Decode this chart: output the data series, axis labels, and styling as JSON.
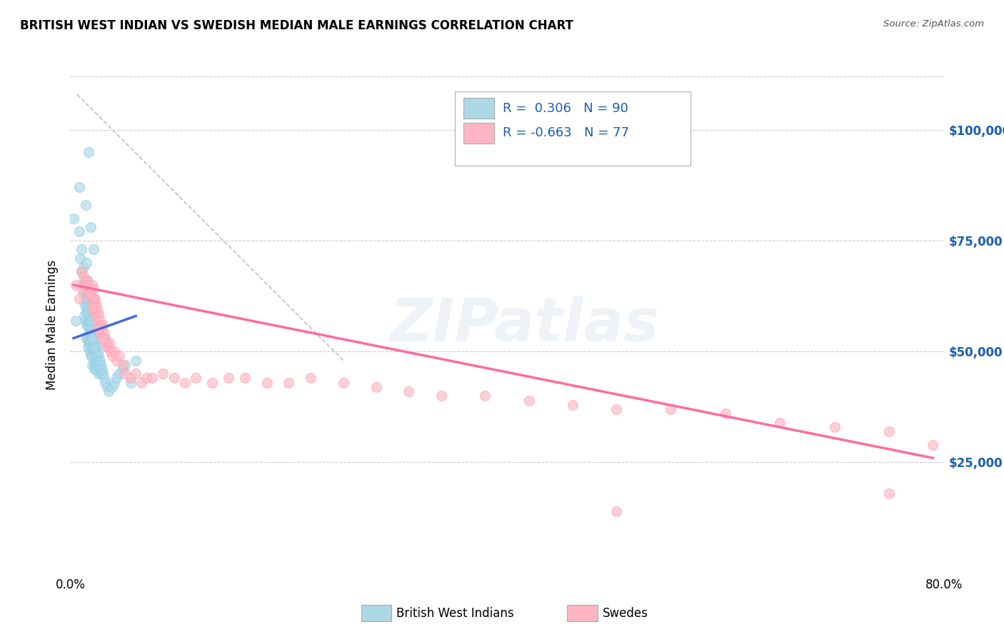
{
  "title": "BRITISH WEST INDIAN VS SWEDISH MEDIAN MALE EARNINGS CORRELATION CHART",
  "source": "Source: ZipAtlas.com",
  "ylabel": "Median Male Earnings",
  "y_ticks": [
    25000,
    50000,
    75000,
    100000
  ],
  "y_tick_labels": [
    "$25,000",
    "$50,000",
    "$75,000",
    "$100,000"
  ],
  "x_range": [
    0.0,
    0.8
  ],
  "y_range": [
    0,
    112000
  ],
  "legend1_R": "0.306",
  "legend1_N": "90",
  "legend2_R": "-0.663",
  "legend2_N": "77",
  "blue_color": "#ADD8E6",
  "blue_edge_color": "#87CEEB",
  "blue_line_color": "#4169E1",
  "pink_color": "#FFB6C1",
  "pink_edge_color": "#FF9EB5",
  "pink_line_color": "#FF6B9D",
  "diagonal_color": "#BBBBBB",
  "watermark": "ZIPatlas",
  "blue_scatter_x": [
    0.003,
    0.005,
    0.008,
    0.009,
    0.01,
    0.01,
    0.011,
    0.012,
    0.012,
    0.013,
    0.013,
    0.013,
    0.014,
    0.014,
    0.014,
    0.015,
    0.015,
    0.015,
    0.015,
    0.015,
    0.016,
    0.016,
    0.016,
    0.016,
    0.016,
    0.017,
    0.017,
    0.017,
    0.017,
    0.018,
    0.018,
    0.018,
    0.018,
    0.019,
    0.019,
    0.019,
    0.019,
    0.02,
    0.02,
    0.02,
    0.02,
    0.02,
    0.021,
    0.021,
    0.021,
    0.022,
    0.022,
    0.022,
    0.022,
    0.022,
    0.023,
    0.023,
    0.023,
    0.023,
    0.024,
    0.024,
    0.024,
    0.025,
    0.025,
    0.025,
    0.026,
    0.026,
    0.026,
    0.027,
    0.027,
    0.028,
    0.028,
    0.029,
    0.03,
    0.031,
    0.032,
    0.034,
    0.035,
    0.038,
    0.04,
    0.042,
    0.045,
    0.048,
    0.05,
    0.055,
    0.06,
    0.008,
    0.014,
    0.019,
    0.021,
    0.017,
    0.022,
    0.015,
    0.016,
    0.02
  ],
  "blue_scatter_y": [
    80000,
    57000,
    77000,
    71000,
    73000,
    68000,
    65000,
    69000,
    63000,
    66000,
    61000,
    58000,
    63000,
    60000,
    57000,
    65000,
    62000,
    59000,
    56000,
    53000,
    62000,
    59000,
    56000,
    53000,
    51000,
    60000,
    57000,
    54000,
    52000,
    58000,
    55000,
    52000,
    50000,
    57000,
    54000,
    51000,
    49000,
    55000,
    53000,
    51000,
    49000,
    47000,
    54000,
    52000,
    50000,
    53000,
    51000,
    49000,
    47000,
    46000,
    52000,
    50000,
    48000,
    46000,
    51000,
    49000,
    47000,
    50000,
    48000,
    46000,
    49000,
    47000,
    45000,
    48000,
    46000,
    47000,
    45000,
    46000,
    45000,
    44000,
    43000,
    42000,
    41000,
    42000,
    43000,
    44000,
    45000,
    46000,
    47000,
    43000,
    48000,
    87000,
    83000,
    78000,
    73000,
    95000,
    51000,
    70000,
    66000,
    53000
  ],
  "pink_scatter_x": [
    0.005,
    0.008,
    0.01,
    0.011,
    0.012,
    0.013,
    0.015,
    0.016,
    0.017,
    0.018,
    0.019,
    0.02,
    0.02,
    0.021,
    0.021,
    0.022,
    0.022,
    0.023,
    0.023,
    0.024,
    0.025,
    0.025,
    0.026,
    0.027,
    0.028,
    0.028,
    0.029,
    0.03,
    0.031,
    0.032,
    0.033,
    0.034,
    0.035,
    0.036,
    0.037,
    0.038,
    0.04,
    0.042,
    0.045,
    0.048,
    0.05,
    0.055,
    0.06,
    0.065,
    0.07,
    0.075,
    0.085,
    0.095,
    0.105,
    0.115,
    0.13,
    0.145,
    0.16,
    0.18,
    0.2,
    0.22,
    0.25,
    0.28,
    0.31,
    0.34,
    0.38,
    0.42,
    0.46,
    0.5,
    0.55,
    0.6,
    0.65,
    0.7,
    0.75,
    0.79,
    0.02,
    0.025,
    0.03,
    0.022,
    0.018,
    0.5,
    0.75
  ],
  "pink_scatter_y": [
    65000,
    62000,
    68000,
    64000,
    67000,
    65000,
    66000,
    64000,
    65000,
    63000,
    63000,
    65000,
    62000,
    64000,
    61000,
    62000,
    59000,
    61000,
    58000,
    60000,
    59000,
    56000,
    58000,
    57000,
    56000,
    54000,
    55000,
    56000,
    54000,
    53000,
    52000,
    51000,
    51000,
    52000,
    50000,
    49000,
    50000,
    48000,
    49000,
    47000,
    45000,
    44000,
    45000,
    43000,
    44000,
    44000,
    45000,
    44000,
    43000,
    44000,
    43000,
    44000,
    44000,
    43000,
    43000,
    44000,
    43000,
    42000,
    41000,
    40000,
    40000,
    39000,
    38000,
    37000,
    37000,
    36000,
    34000,
    33000,
    32000,
    29000,
    60000,
    55000,
    53000,
    62000,
    63000,
    14000,
    18000
  ],
  "blue_line_x0": 0.003,
  "blue_line_x1": 0.06,
  "blue_line_y0": 53000,
  "blue_line_y1": 58000,
  "pink_line_x0": 0.003,
  "pink_line_x1": 0.79,
  "pink_line_y0": 65000,
  "pink_line_y1": 26000,
  "diag_line_x0": 0.006,
  "diag_line_x1": 0.25,
  "diag_line_y0": 108000,
  "diag_line_y1": 48000
}
